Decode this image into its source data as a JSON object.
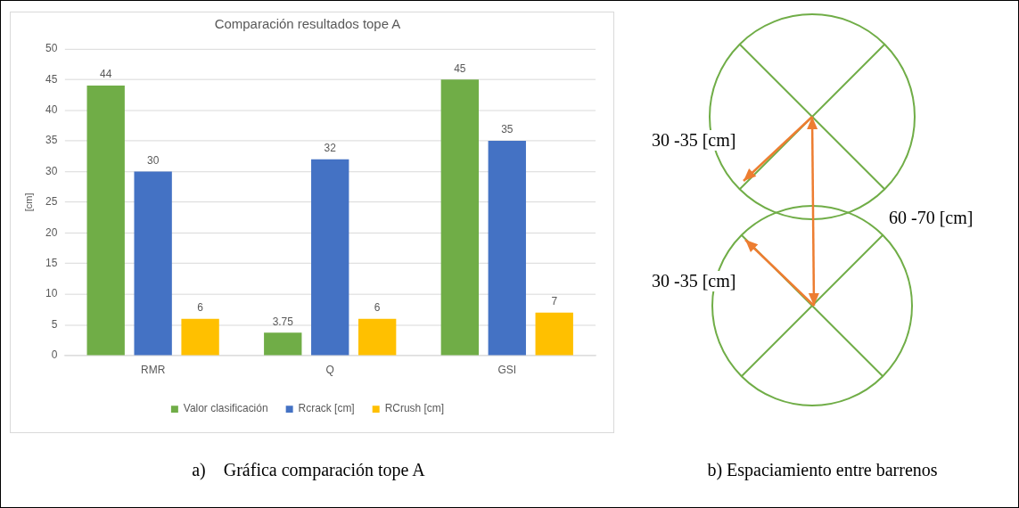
{
  "chart_data": [
    {
      "type": "bar",
      "title": "Comparación resultados tope A",
      "ylabel": "[cm]",
      "categories": [
        "RMR",
        "Q",
        "GSI"
      ],
      "series": [
        {
          "name": "Valor clasificación",
          "color": "#70ad47",
          "values": [
            44,
            3.75,
            45
          ]
        },
        {
          "name": "Rcrack [cm]",
          "color": "#4472c4",
          "values": [
            30,
            32,
            35
          ]
        },
        {
          "name": "RCrush [cm]",
          "color": "#ffc000",
          "values": [
            6,
            6,
            7
          ]
        }
      ],
      "ylim": [
        0,
        50
      ],
      "yticks": [
        0,
        5,
        10,
        15,
        20,
        25,
        30,
        35,
        40,
        45,
        50
      ],
      "grid": "y",
      "legend": "bottom",
      "data_labels": true,
      "annotations": [
        "a)    Gráfica comparación tope A"
      ]
    },
    {
      "type": "other",
      "annotations": [
        "30 -35 [cm]",
        "60 -70 [cm]",
        "30 -35 [cm]",
        "b) Espaciamiento entre barrenos"
      ]
    }
  ]
}
